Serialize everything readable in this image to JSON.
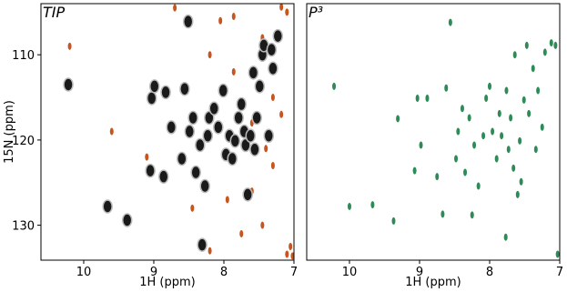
{
  "chart_data": [
    {
      "type": "scatter",
      "title": "TIP",
      "xlabel": "1H (ppm)",
      "ylabel": "15N (ppm)",
      "xlim": [
        10.61,
        7
      ],
      "ylim": [
        134.1,
        104
      ],
      "xticks": [
        10,
        9,
        8,
        7
      ],
      "yticks": [
        110,
        120,
        130
      ],
      "series": [
        {
          "color": "#c8541e",
          "x": [
            7.86,
            7.86,
            7.6,
            7.6,
            7.45,
            7.45,
            7.3,
            7.3,
            8.2,
            8.2,
            8.45,
            8.7,
            9.1,
            9.6,
            10.2,
            7.1,
            7.05,
            7.02,
            7.1,
            7.75,
            7.95,
            8.05,
            7.4,
            7.18,
            7.18
          ],
          "y": [
            105.5,
            112,
            118,
            126,
            108,
            130,
            115,
            123,
            110,
            133,
            128,
            104.5,
            122,
            119,
            109,
            133.4,
            132.5,
            133.6,
            105,
            131,
            127,
            106,
            121,
            104.4,
            117
          ]
        },
        {
          "color": "#1a1a1a",
          "x": [
            10.22,
            9.66,
            9.38,
            9.05,
            9.03,
            8.99,
            8.86,
            8.83,
            8.75,
            8.6,
            8.56,
            8.51,
            8.49,
            8.44,
            8.4,
            8.34,
            8.31,
            8.27,
            8.23,
            8.21,
            8.14,
            8.08,
            8.01,
            7.97,
            7.92,
            7.88,
            7.84,
            7.79,
            7.75,
            7.71,
            7.69,
            7.66,
            7.62,
            7.58,
            7.56,
            7.53,
            7.49,
            7.45,
            7.43,
            7.36,
            7.32,
            7.3,
            7.23
          ],
          "y": [
            113.5,
            127.8,
            129.4,
            123.6,
            115.1,
            113.7,
            124.3,
            114.4,
            118.5,
            122.2,
            114,
            106.1,
            119,
            117.4,
            123.8,
            120.6,
            132.3,
            125.4,
            119.5,
            117.4,
            116.3,
            118.5,
            114.2,
            121.7,
            119.5,
            122.2,
            120.1,
            117.4,
            115.8,
            119,
            120.6,
            126.4,
            119.5,
            112.1,
            121.1,
            117.4,
            113.7,
            110,
            108.9,
            119.5,
            109.4,
            111.6,
            107.8
          ]
        }
      ]
    },
    {
      "type": "scatter",
      "title": "P³",
      "xlabel": "1H (ppm)",
      "xlim": [
        10.61,
        7
      ],
      "ylim": [
        134.1,
        104
      ],
      "xticks": [
        10,
        9,
        8,
        7
      ],
      "series": [
        {
          "color": "#2e8b57",
          "x": [
            10.22,
            10,
            9.67,
            9.37,
            9.31,
            9.07,
            9.03,
            8.98,
            8.89,
            8.75,
            8.67,
            8.62,
            8.56,
            8.48,
            8.45,
            8.39,
            8.35,
            8.29,
            8.25,
            8.22,
            8.16,
            8.09,
            8.05,
            8,
            7.96,
            7.9,
            7.86,
            7.83,
            7.77,
            7.76,
            7.73,
            7.7,
            7.66,
            7.64,
            7.6,
            7.57,
            7.55,
            7.51,
            7.47,
            7.44,
            7.38,
            7.34,
            7.31,
            7.25,
            7.21,
            7.12,
            7.06,
            7.03
          ],
          "y": [
            113.7,
            127.8,
            127.6,
            129.5,
            117.5,
            123.6,
            115.1,
            120.6,
            115.1,
            124.3,
            128.7,
            113.9,
            106.2,
            122.2,
            119,
            116.3,
            123.8,
            117.4,
            128.8,
            120.6,
            125.4,
            119.5,
            115.1,
            113.7,
            119,
            122.2,
            116.9,
            119.5,
            131.4,
            114.2,
            121.1,
            117.4,
            123.3,
            110,
            126.4,
            120.1,
            124.9,
            115.3,
            108.9,
            116.9,
            111.6,
            121.1,
            114.2,
            118.5,
            109.7,
            108.6,
            108.9,
            133.4
          ]
        }
      ]
    }
  ]
}
